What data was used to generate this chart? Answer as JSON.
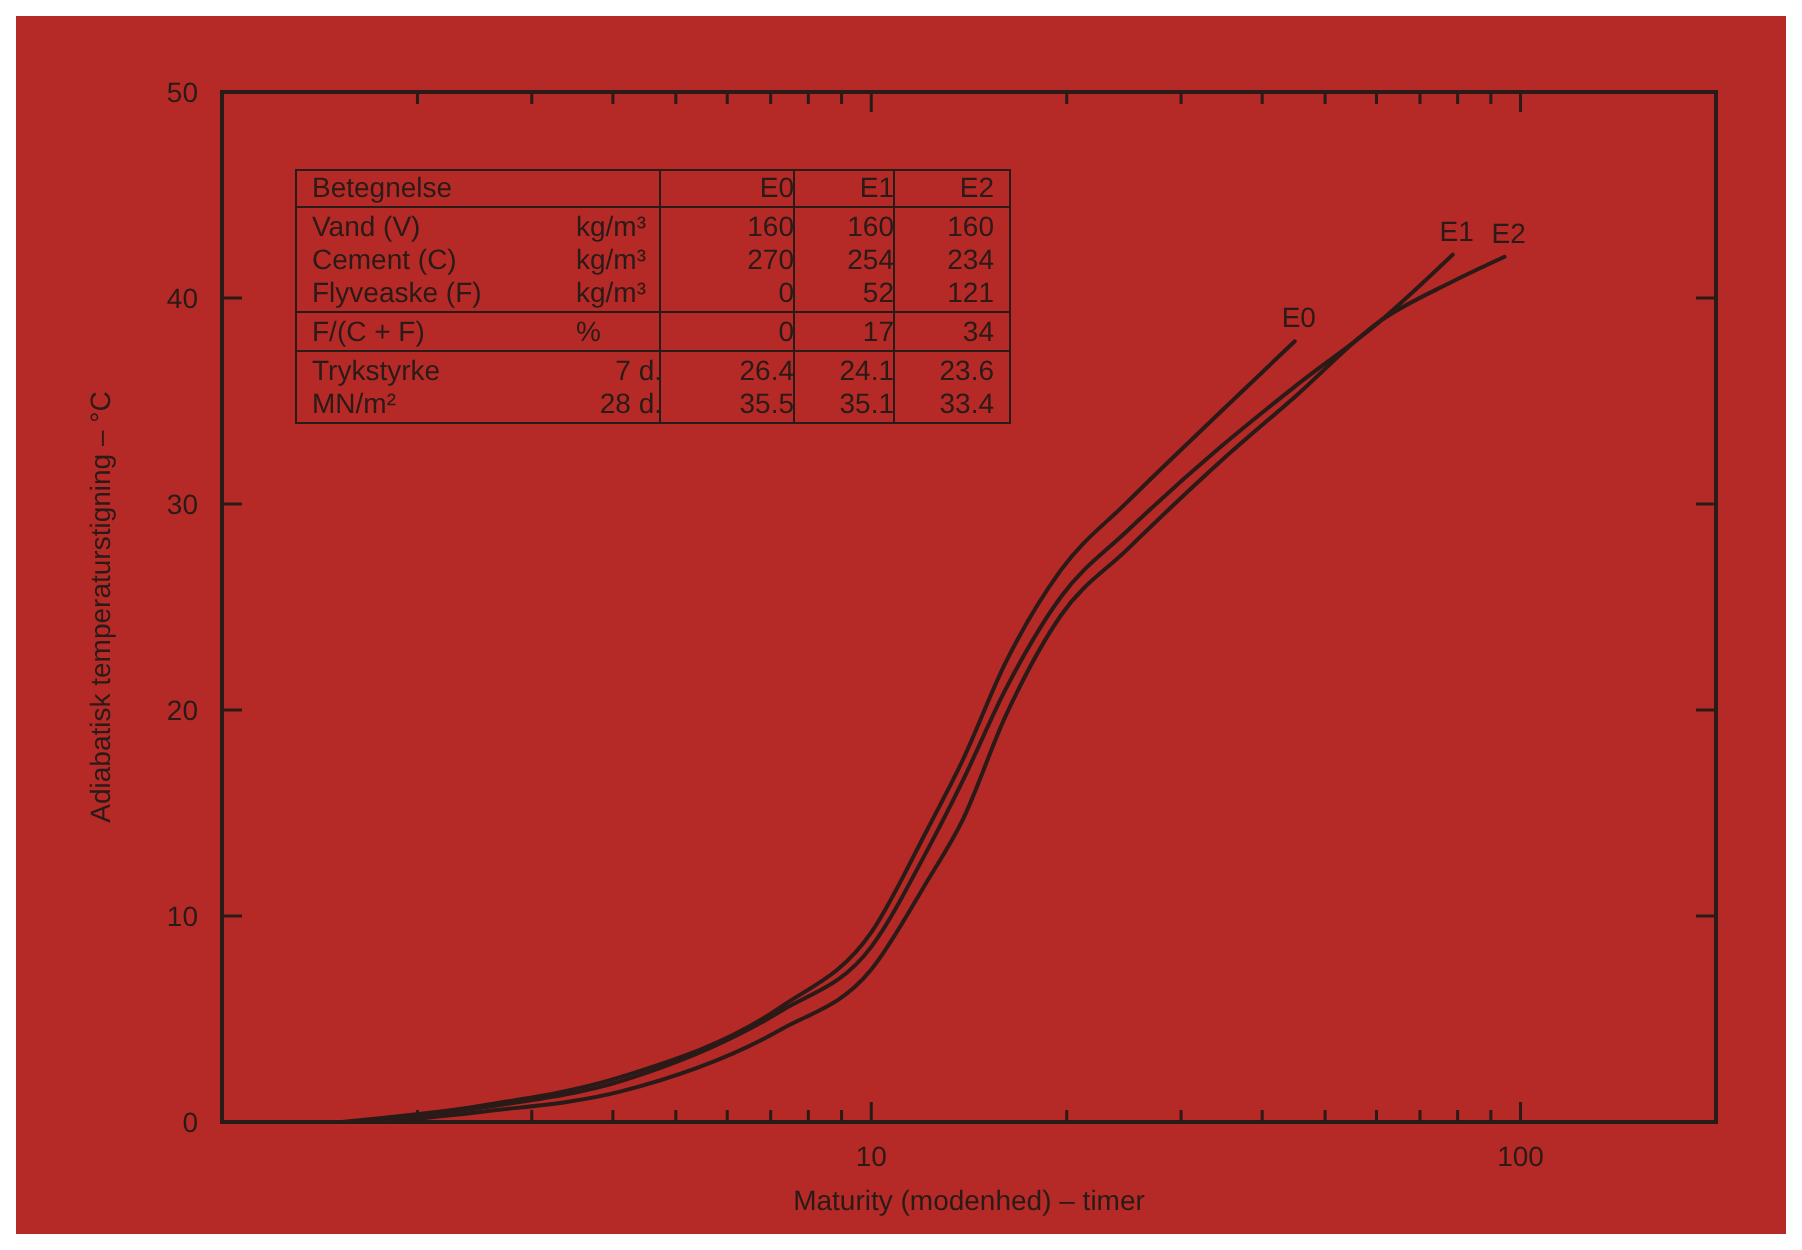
{
  "chart_data": {
    "type": "line",
    "xlabel": "Maturity (modenhed) – timer",
    "ylabel": "Adiabatisk temperaturstigning – °C",
    "log": "x",
    "xlim": [
      1,
      200
    ],
    "ylim": [
      0,
      50
    ],
    "xticks": [
      {
        "value": 2,
        "label": null
      },
      {
        "value": 3,
        "label": null
      },
      {
        "value": 4,
        "label": null
      },
      {
        "value": 5,
        "label": null
      },
      {
        "value": 6,
        "label": null
      },
      {
        "value": 7,
        "label": null
      },
      {
        "value": 8,
        "label": null
      },
      {
        "value": 9,
        "label": null
      },
      10,
      {
        "value": 20,
        "label": null
      },
      {
        "value": 30,
        "label": null
      },
      {
        "value": 40,
        "label": null
      },
      {
        "value": 50,
        "label": null
      },
      {
        "value": 60,
        "label": null
      },
      {
        "value": 70,
        "label": null
      },
      {
        "value": 80,
        "label": null
      },
      {
        "value": 90,
        "label": null
      },
      100
    ],
    "yticks": [
      0,
      10,
      20,
      30,
      40,
      50
    ],
    "grid": false,
    "legend": false,
    "marker": "none",
    "line_style": "solid",
    "series": [
      {
        "name": "E0",
        "color": "#2a1a18",
        "x": [
          1.53,
          2.52,
          4.13,
          7.27,
          10,
          12.2,
          13.8,
          16.1,
          19.6,
          24.8,
          34.6,
          44.9
        ],
        "values": [
          0,
          0.8,
          2.2,
          5.6,
          9.2,
          14.2,
          17.5,
          22.3,
          26.8,
          30.1,
          34.5,
          37.9
        ]
      },
      {
        "name": "E1",
        "color": "#2a1a18",
        "x": [
          1.6,
          2.52,
          4.13,
          7.27,
          10,
          12.2,
          13.8,
          16.1,
          19.6,
          24.8,
          34.6,
          44.9,
          60.9,
          78.6
        ],
        "values": [
          0,
          0.7,
          2,
          5.4,
          8.5,
          13.2,
          16.5,
          21,
          25.5,
          28.7,
          32.8,
          35.7,
          38.9,
          42.1
        ]
      },
      {
        "name": "E2",
        "color": "#2a1a18",
        "x": [
          1.76,
          2.52,
          4.13,
          7.27,
          10,
          12.2,
          13.8,
          16.1,
          19.6,
          24.8,
          34.6,
          44.9,
          60.9,
          78.6,
          94.5
        ],
        "values": [
          0,
          0.5,
          1.5,
          4.5,
          7.4,
          11.7,
          14.6,
          19.7,
          24.6,
          27.8,
          32.1,
          35.2,
          38.9,
          40.8,
          42
        ]
      }
    ],
    "annotations": [
      "Betegnelse",
      "E0",
      "E1",
      "E2",
      "Vand (V)",
      "kg/m³",
      "160",
      "160",
      "160",
      "Cement (C)",
      "kg/m³",
      "270",
      "254",
      "234",
      "Flyveaske (F)",
      "kg/m³",
      "0",
      "52",
      "121",
      "F/(C + F)",
      "%",
      "0",
      "17",
      "34",
      "Trykstyrke",
      "7 d.",
      "26.4",
      "24.1",
      "23.6",
      "MN/m²",
      "28 d.",
      "35.5",
      "35.1",
      "33.4"
    ]
  }
}
